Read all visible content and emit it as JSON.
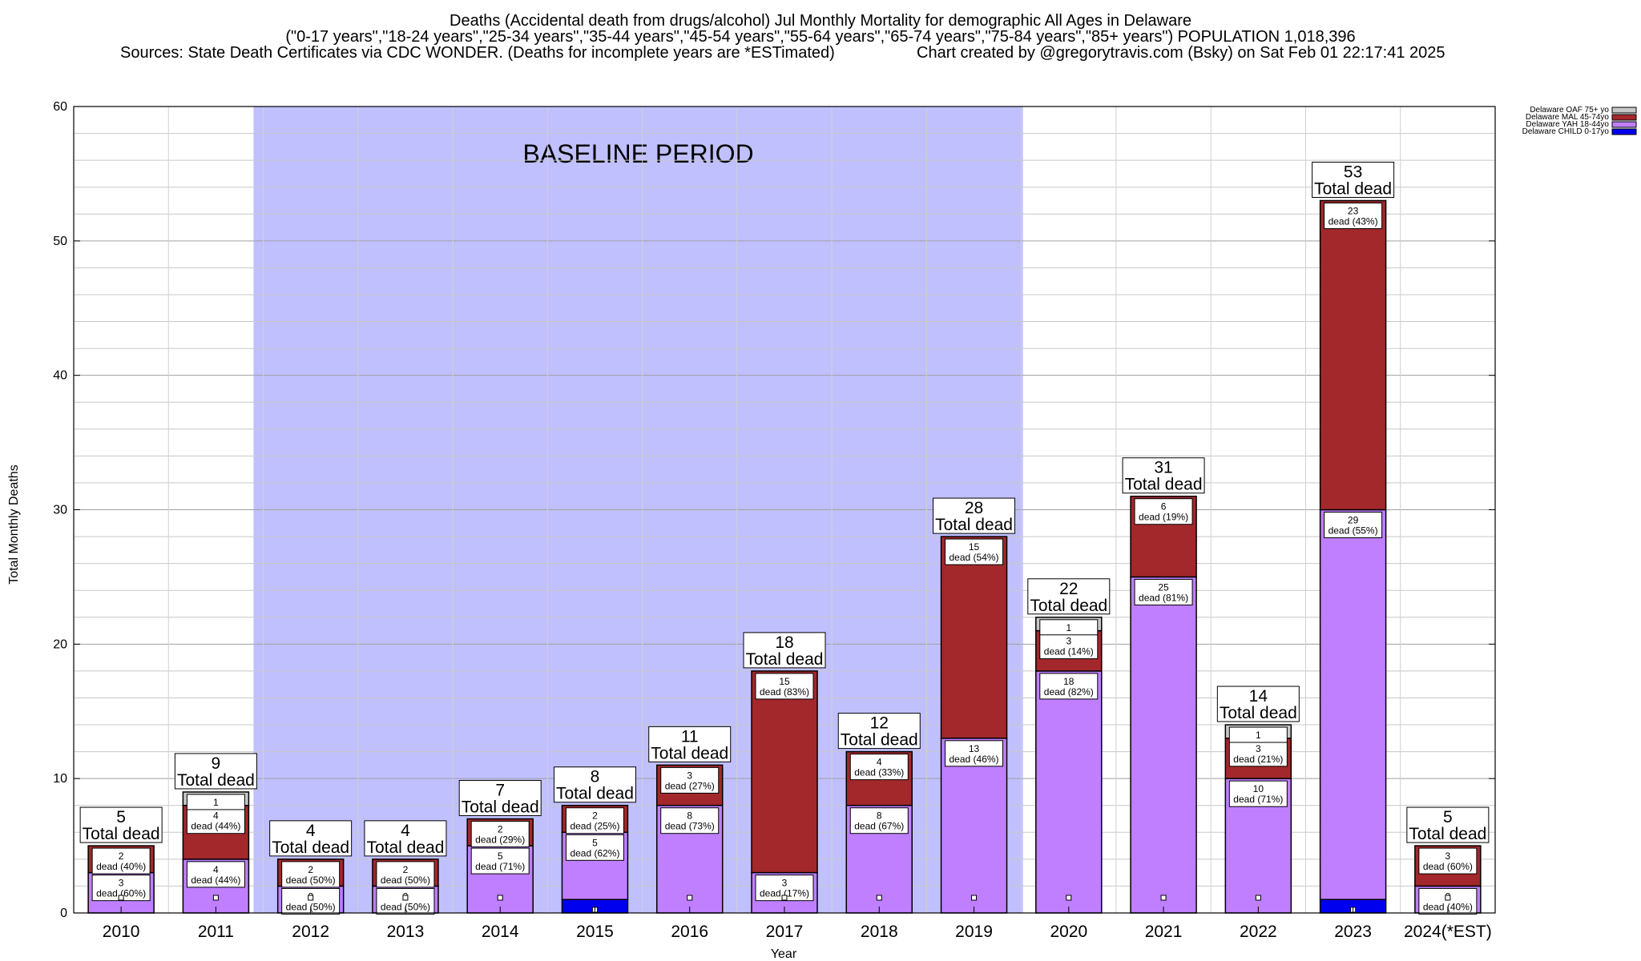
{
  "chart_data": {
    "type": "bar",
    "stacked": true,
    "title_lines": [
      "Deaths (Accidental death from drugs/alcohol) Jul Monthly Mortality for demographic All Ages in Delaware",
      "(\"0-17 years\",\"18-24 years\",\"25-34 years\",\"35-44 years\",\"45-54 years\",\"55-64 years\",\"65-74 years\",\"75-84 years\",\"85+ years\") POPULATION 1,018,396"
    ],
    "source_line": "Sources: State Death Certificates via CDC WONDER. (Deaths for incomplete years are *ESTimated)",
    "credit_line": "Chart created by @gregorytravis.com (Bsky) on Sat Feb 01 22:17:41 2025",
    "xlabel": "Year",
    "ylabel": "Total Monthly Deaths",
    "ylim": [
      0,
      60
    ],
    "y_ticks": [
      0,
      10,
      20,
      30,
      40,
      50,
      60
    ],
    "categories": [
      "2010",
      "2011",
      "2012",
      "2013",
      "2014",
      "2015",
      "2016",
      "2017",
      "2018",
      "2019",
      "2020",
      "2021",
      "2022",
      "2023",
      "2024(*EST)"
    ],
    "series": [
      {
        "name": "Delaware CHILD 0-17yo",
        "color": "#0000ee",
        "values": [
          0,
          0,
          0,
          0,
          0,
          1,
          0,
          0,
          0,
          0,
          0,
          0,
          0,
          1,
          0
        ]
      },
      {
        "name": "Delaware YAH 18-44yo",
        "color": "#bf7fff",
        "values": [
          3,
          4,
          2,
          2,
          5,
          5,
          8,
          3,
          8,
          13,
          18,
          25,
          10,
          29,
          2
        ]
      },
      {
        "name": "Delaware MAL 45-74yo",
        "color": "#a3282b",
        "values": [
          2,
          4,
          2,
          2,
          2,
          2,
          3,
          15,
          4,
          15,
          3,
          6,
          3,
          23,
          3
        ]
      },
      {
        "name": "Delaware OAF 75+ yo",
        "color": "#c8c8c8",
        "values": [
          0,
          1,
          0,
          0,
          0,
          0,
          0,
          0,
          0,
          0,
          1,
          0,
          1,
          0,
          0
        ]
      }
    ],
    "totals": [
      5,
      9,
      4,
      4,
      7,
      8,
      11,
      18,
      12,
      28,
      22,
      31,
      14,
      53,
      5
    ],
    "total_suffix": "Total dead",
    "segment_labels": [
      {
        "YAH": [
          "3",
          "dead (60%)"
        ],
        "MAL": [
          "2",
          "dead (40%)"
        ]
      },
      {
        "YAH": [
          "4",
          "dead (44%)"
        ],
        "MAL": [
          "4",
          "dead (44%)"
        ],
        "OAF": [
          "1",
          ""
        ]
      },
      {
        "YAH": [
          "2",
          "dead (50%)"
        ],
        "MAL": [
          "2",
          "dead (50%)"
        ]
      },
      {
        "YAH": [
          "2",
          "dead (50%)"
        ],
        "MAL": [
          "2",
          "dead (50%)"
        ]
      },
      {
        "YAH": [
          "5",
          "dead (71%)"
        ],
        "MAL": [
          "2",
          "dead (29%)"
        ]
      },
      {
        "YAH": [
          "5",
          "dead (62%)"
        ],
        "MAL": [
          "2",
          "dead (25%)"
        ]
      },
      {
        "YAH": [
          "8",
          "dead (73%)"
        ],
        "MAL": [
          "3",
          "dead (27%)"
        ]
      },
      {
        "YAH": [
          "3",
          "dead (17%)"
        ],
        "MAL": [
          "15",
          "dead (83%)"
        ]
      },
      {
        "YAH": [
          "8",
          "dead (67%)"
        ],
        "MAL": [
          "4",
          "dead (33%)"
        ]
      },
      {
        "YAH": [
          "13",
          "dead (46%)"
        ],
        "MAL": [
          "15",
          "dead (54%)"
        ]
      },
      {
        "YAH": [
          "18",
          "dead (82%)"
        ],
        "MAL": [
          "3",
          "dead (14%)"
        ],
        "OAF": [
          "1",
          ""
        ]
      },
      {
        "YAH": [
          "25",
          "dead (81%)"
        ],
        "MAL": [
          "6",
          "dead (19%)"
        ]
      },
      {
        "YAH": [
          "10",
          "dead (71%)"
        ],
        "MAL": [
          "3",
          "dead (21%)"
        ],
        "OAF": [
          "1",
          ""
        ]
      },
      {
        "YAH": [
          "29",
          "dead (55%)"
        ],
        "MAL": [
          "23",
          "dead (43%)"
        ]
      },
      {
        "YAH": [
          "2",
          "dead (40%)"
        ],
        "MAL": [
          "3",
          "dead (60%)"
        ]
      }
    ],
    "baseline": {
      "label": "BASELINE PERIOD",
      "start": "2012",
      "end": "2019",
      "color": "#c0c0ff"
    },
    "legend": {
      "position": "top-right",
      "order": [
        "Delaware OAF 75+ yo",
        "Delaware MAL 45-74yo",
        "Delaware YAH 18-44yo",
        "Delaware CHILD 0-17yo"
      ]
    },
    "grid": true
  }
}
